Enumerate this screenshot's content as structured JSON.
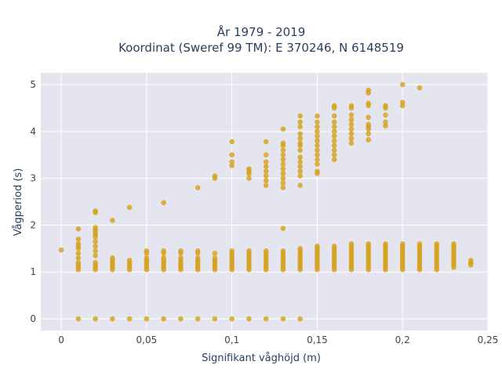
{
  "chart_data": {
    "type": "scatter",
    "title_line1": "År 1979 - 2019",
    "title_line2": "Koordinat (Sweref 99 TM): E 370246, N 6148519",
    "xlabel": "Signifikant våghöjd (m)",
    "ylabel": "Vågperiod (s)",
    "xlim": [
      -0.012,
      0.25
    ],
    "ylim": [
      -0.25,
      5.25
    ],
    "x_ticks": [
      0,
      0.05,
      0.1,
      0.15,
      0.2,
      0.25
    ],
    "x_tick_labels": [
      "0",
      "0,05",
      "0,1",
      "0,15",
      "0,2",
      "0,25"
    ],
    "y_ticks": [
      0,
      1,
      2,
      3,
      4,
      5
    ],
    "y_tick_labels": [
      "0",
      "1",
      "2",
      "3",
      "4",
      "5"
    ],
    "grid": true,
    "marker_color": "#d4a017",
    "plot_bg": "#e5e5ef",
    "points": [
      [
        0,
        1.47
      ],
      [
        0.01,
        0
      ],
      [
        0.02,
        0
      ],
      [
        0.03,
        0
      ],
      [
        0.04,
        0
      ],
      [
        0.05,
        0
      ],
      [
        0.06,
        0
      ],
      [
        0.07,
        0
      ],
      [
        0.08,
        0
      ],
      [
        0.09,
        0
      ],
      [
        0.1,
        0
      ],
      [
        0.11,
        0
      ],
      [
        0.12,
        0
      ],
      [
        0.13,
        0
      ],
      [
        0.14,
        0
      ],
      [
        0.01,
        1.05
      ],
      [
        0.01,
        1.1
      ],
      [
        0.01,
        1.15
      ],
      [
        0.01,
        1.2
      ],
      [
        0.01,
        1.3
      ],
      [
        0.01,
        1.4
      ],
      [
        0.01,
        1.5
      ],
      [
        0.01,
        1.55
      ],
      [
        0.01,
        1.6
      ],
      [
        0.01,
        1.7
      ],
      [
        0.01,
        1.92
      ],
      [
        0.02,
        1.05
      ],
      [
        0.02,
        1.1
      ],
      [
        0.02,
        1.15
      ],
      [
        0.02,
        1.2
      ],
      [
        0.02,
        1.35
      ],
      [
        0.02,
        1.45
      ],
      [
        0.02,
        1.55
      ],
      [
        0.02,
        1.65
      ],
      [
        0.02,
        1.75
      ],
      [
        0.02,
        1.8
      ],
      [
        0.02,
        1.85
      ],
      [
        0.02,
        1.9
      ],
      [
        0.02,
        1.95
      ],
      [
        0.02,
        2.27
      ],
      [
        0.02,
        2.3
      ],
      [
        0.03,
        1.05
      ],
      [
        0.03,
        1.1
      ],
      [
        0.03,
        1.15
      ],
      [
        0.03,
        1.2
      ],
      [
        0.03,
        1.25
      ],
      [
        0.03,
        1.3
      ],
      [
        0.03,
        2.1
      ],
      [
        0.04,
        1.05
      ],
      [
        0.04,
        1.1
      ],
      [
        0.04,
        1.15
      ],
      [
        0.04,
        1.2
      ],
      [
        0.04,
        1.25
      ],
      [
        0.04,
        2.38
      ],
      [
        0.05,
        1.05
      ],
      [
        0.05,
        1.1
      ],
      [
        0.05,
        1.15
      ],
      [
        0.05,
        1.2
      ],
      [
        0.05,
        1.25
      ],
      [
        0.05,
        1.3
      ],
      [
        0.05,
        1.4
      ],
      [
        0.05,
        1.45
      ],
      [
        0.06,
        1.05
      ],
      [
        0.06,
        1.1
      ],
      [
        0.06,
        1.15
      ],
      [
        0.06,
        1.2
      ],
      [
        0.06,
        1.25
      ],
      [
        0.06,
        1.3
      ],
      [
        0.06,
        1.4
      ],
      [
        0.06,
        1.45
      ],
      [
        0.06,
        2.48
      ],
      [
        0.07,
        1.05
      ],
      [
        0.07,
        1.1
      ],
      [
        0.07,
        1.15
      ],
      [
        0.07,
        1.2
      ],
      [
        0.07,
        1.25
      ],
      [
        0.07,
        1.3
      ],
      [
        0.07,
        1.4
      ],
      [
        0.07,
        1.45
      ],
      [
        0.08,
        1.05
      ],
      [
        0.08,
        1.1
      ],
      [
        0.08,
        1.15
      ],
      [
        0.08,
        1.2
      ],
      [
        0.08,
        1.25
      ],
      [
        0.08,
        1.3
      ],
      [
        0.08,
        1.4
      ],
      [
        0.08,
        1.45
      ],
      [
        0.08,
        2.8
      ],
      [
        0.09,
        1.05
      ],
      [
        0.09,
        1.1
      ],
      [
        0.09,
        1.15
      ],
      [
        0.09,
        1.2
      ],
      [
        0.09,
        1.25
      ],
      [
        0.09,
        1.3
      ],
      [
        0.09,
        1.4
      ],
      [
        0.09,
        3.0
      ],
      [
        0.09,
        3.05
      ],
      [
        0.1,
        1.05
      ],
      [
        0.1,
        1.1
      ],
      [
        0.1,
        1.15
      ],
      [
        0.1,
        1.2
      ],
      [
        0.1,
        1.25
      ],
      [
        0.1,
        1.3
      ],
      [
        0.1,
        1.35
      ],
      [
        0.1,
        1.4
      ],
      [
        0.1,
        1.45
      ],
      [
        0.1,
        3.27
      ],
      [
        0.1,
        3.35
      ],
      [
        0.1,
        3.5
      ],
      [
        0.1,
        3.78
      ],
      [
        0.11,
        1.05
      ],
      [
        0.11,
        1.1
      ],
      [
        0.11,
        1.15
      ],
      [
        0.11,
        1.2
      ],
      [
        0.11,
        1.25
      ],
      [
        0.11,
        1.3
      ],
      [
        0.11,
        1.35
      ],
      [
        0.11,
        1.4
      ],
      [
        0.11,
        1.45
      ],
      [
        0.11,
        3.0
      ],
      [
        0.11,
        3.1
      ],
      [
        0.11,
        3.15
      ],
      [
        0.11,
        3.2
      ],
      [
        0.12,
        1.05
      ],
      [
        0.12,
        1.1
      ],
      [
        0.12,
        1.15
      ],
      [
        0.12,
        1.2
      ],
      [
        0.12,
        1.25
      ],
      [
        0.12,
        1.3
      ],
      [
        0.12,
        1.35
      ],
      [
        0.12,
        1.4
      ],
      [
        0.12,
        1.45
      ],
      [
        0.12,
        2.85
      ],
      [
        0.12,
        2.95
      ],
      [
        0.12,
        3.05
      ],
      [
        0.12,
        3.15
      ],
      [
        0.12,
        3.25
      ],
      [
        0.12,
        3.35
      ],
      [
        0.12,
        3.5
      ],
      [
        0.12,
        3.78
      ],
      [
        0.13,
        1.05
      ],
      [
        0.13,
        1.1
      ],
      [
        0.13,
        1.15
      ],
      [
        0.13,
        1.2
      ],
      [
        0.13,
        1.25
      ],
      [
        0.13,
        1.3
      ],
      [
        0.13,
        1.35
      ],
      [
        0.13,
        1.4
      ],
      [
        0.13,
        1.45
      ],
      [
        0.13,
        1.93
      ],
      [
        0.13,
        2.8
      ],
      [
        0.13,
        2.9
      ],
      [
        0.13,
        3.0
      ],
      [
        0.13,
        3.1
      ],
      [
        0.13,
        3.2
      ],
      [
        0.13,
        3.3
      ],
      [
        0.13,
        3.4
      ],
      [
        0.13,
        3.5
      ],
      [
        0.13,
        3.6
      ],
      [
        0.13,
        3.7
      ],
      [
        0.13,
        3.75
      ],
      [
        0.13,
        4.05
      ],
      [
        0.14,
        1.05
      ],
      [
        0.14,
        1.1
      ],
      [
        0.14,
        1.15
      ],
      [
        0.14,
        1.2
      ],
      [
        0.14,
        1.25
      ],
      [
        0.14,
        1.3
      ],
      [
        0.14,
        1.35
      ],
      [
        0.14,
        1.4
      ],
      [
        0.14,
        1.45
      ],
      [
        0.14,
        1.5
      ],
      [
        0.14,
        2.85
      ],
      [
        0.14,
        3.05
      ],
      [
        0.14,
        3.15
      ],
      [
        0.14,
        3.25
      ],
      [
        0.14,
        3.35
      ],
      [
        0.14,
        3.45
      ],
      [
        0.14,
        3.6
      ],
      [
        0.14,
        3.7
      ],
      [
        0.14,
        3.75
      ],
      [
        0.14,
        3.85
      ],
      [
        0.14,
        3.95
      ],
      [
        0.14,
        4.1
      ],
      [
        0.14,
        4.2
      ],
      [
        0.14,
        4.33
      ],
      [
        0.15,
        1.05
      ],
      [
        0.15,
        1.1
      ],
      [
        0.15,
        1.15
      ],
      [
        0.15,
        1.2
      ],
      [
        0.15,
        1.25
      ],
      [
        0.15,
        1.3
      ],
      [
        0.15,
        1.35
      ],
      [
        0.15,
        1.4
      ],
      [
        0.15,
        1.45
      ],
      [
        0.15,
        1.5
      ],
      [
        0.15,
        1.55
      ],
      [
        0.15,
        3.1
      ],
      [
        0.15,
        3.15
      ],
      [
        0.15,
        3.3
      ],
      [
        0.15,
        3.4
      ],
      [
        0.15,
        3.5
      ],
      [
        0.15,
        3.6
      ],
      [
        0.15,
        3.7
      ],
      [
        0.15,
        3.8
      ],
      [
        0.15,
        3.9
      ],
      [
        0.15,
        4.0
      ],
      [
        0.15,
        4.1
      ],
      [
        0.15,
        4.2
      ],
      [
        0.15,
        4.33
      ],
      [
        0.16,
        1.05
      ],
      [
        0.16,
        1.1
      ],
      [
        0.16,
        1.15
      ],
      [
        0.16,
        1.2
      ],
      [
        0.16,
        1.25
      ],
      [
        0.16,
        1.3
      ],
      [
        0.16,
        1.35
      ],
      [
        0.16,
        1.4
      ],
      [
        0.16,
        1.45
      ],
      [
        0.16,
        1.5
      ],
      [
        0.16,
        1.55
      ],
      [
        0.16,
        3.4
      ],
      [
        0.16,
        3.5
      ],
      [
        0.16,
        3.6
      ],
      [
        0.16,
        3.7
      ],
      [
        0.16,
        3.8
      ],
      [
        0.16,
        3.9
      ],
      [
        0.16,
        4.0
      ],
      [
        0.16,
        4.1
      ],
      [
        0.16,
        4.2
      ],
      [
        0.16,
        4.33
      ],
      [
        0.16,
        4.5
      ],
      [
        0.16,
        4.55
      ],
      [
        0.17,
        1.05
      ],
      [
        0.17,
        1.1
      ],
      [
        0.17,
        1.15
      ],
      [
        0.17,
        1.2
      ],
      [
        0.17,
        1.25
      ],
      [
        0.17,
        1.3
      ],
      [
        0.17,
        1.35
      ],
      [
        0.17,
        1.4
      ],
      [
        0.17,
        1.45
      ],
      [
        0.17,
        1.5
      ],
      [
        0.17,
        1.55
      ],
      [
        0.17,
        1.6
      ],
      [
        0.17,
        3.75
      ],
      [
        0.17,
        3.85
      ],
      [
        0.17,
        3.95
      ],
      [
        0.17,
        4.05
      ],
      [
        0.17,
        4.15
      ],
      [
        0.17,
        4.25
      ],
      [
        0.17,
        4.35
      ],
      [
        0.17,
        4.5
      ],
      [
        0.17,
        4.55
      ],
      [
        0.18,
        1.05
      ],
      [
        0.18,
        1.1
      ],
      [
        0.18,
        1.15
      ],
      [
        0.18,
        1.2
      ],
      [
        0.18,
        1.25
      ],
      [
        0.18,
        1.3
      ],
      [
        0.18,
        1.35
      ],
      [
        0.18,
        1.4
      ],
      [
        0.18,
        1.45
      ],
      [
        0.18,
        1.5
      ],
      [
        0.18,
        1.55
      ],
      [
        0.18,
        1.6
      ],
      [
        0.18,
        3.82
      ],
      [
        0.18,
        3.95
      ],
      [
        0.18,
        4.05
      ],
      [
        0.18,
        4.1
      ],
      [
        0.18,
        4.15
      ],
      [
        0.18,
        4.3
      ],
      [
        0.18,
        4.55
      ],
      [
        0.18,
        4.6
      ],
      [
        0.18,
        4.82
      ],
      [
        0.18,
        4.88
      ],
      [
        0.19,
        1.05
      ],
      [
        0.19,
        1.1
      ],
      [
        0.19,
        1.15
      ],
      [
        0.19,
        1.2
      ],
      [
        0.19,
        1.25
      ],
      [
        0.19,
        1.3
      ],
      [
        0.19,
        1.35
      ],
      [
        0.19,
        1.4
      ],
      [
        0.19,
        1.45
      ],
      [
        0.19,
        1.5
      ],
      [
        0.19,
        1.55
      ],
      [
        0.19,
        1.6
      ],
      [
        0.19,
        4.12
      ],
      [
        0.19,
        4.2
      ],
      [
        0.19,
        4.35
      ],
      [
        0.19,
        4.5
      ],
      [
        0.19,
        4.55
      ],
      [
        0.2,
        1.05
      ],
      [
        0.2,
        1.1
      ],
      [
        0.2,
        1.15
      ],
      [
        0.2,
        1.2
      ],
      [
        0.2,
        1.25
      ],
      [
        0.2,
        1.3
      ],
      [
        0.2,
        1.35
      ],
      [
        0.2,
        1.4
      ],
      [
        0.2,
        1.45
      ],
      [
        0.2,
        1.5
      ],
      [
        0.2,
        1.55
      ],
      [
        0.2,
        1.6
      ],
      [
        0.2,
        4.55
      ],
      [
        0.2,
        4.62
      ],
      [
        0.2,
        5.0
      ],
      [
        0.21,
        1.05
      ],
      [
        0.21,
        1.1
      ],
      [
        0.21,
        1.15
      ],
      [
        0.21,
        1.2
      ],
      [
        0.21,
        1.25
      ],
      [
        0.21,
        1.3
      ],
      [
        0.21,
        1.35
      ],
      [
        0.21,
        1.4
      ],
      [
        0.21,
        1.45
      ],
      [
        0.21,
        1.5
      ],
      [
        0.21,
        1.55
      ],
      [
        0.21,
        1.6
      ],
      [
        0.21,
        4.93
      ],
      [
        0.22,
        1.05
      ],
      [
        0.22,
        1.1
      ],
      [
        0.22,
        1.15
      ],
      [
        0.22,
        1.2
      ],
      [
        0.22,
        1.25
      ],
      [
        0.22,
        1.3
      ],
      [
        0.22,
        1.35
      ],
      [
        0.22,
        1.4
      ],
      [
        0.22,
        1.45
      ],
      [
        0.22,
        1.5
      ],
      [
        0.22,
        1.55
      ],
      [
        0.22,
        1.6
      ],
      [
        0.23,
        1.1
      ],
      [
        0.23,
        1.15
      ],
      [
        0.23,
        1.2
      ],
      [
        0.23,
        1.25
      ],
      [
        0.23,
        1.3
      ],
      [
        0.23,
        1.35
      ],
      [
        0.23,
        1.4
      ],
      [
        0.23,
        1.45
      ],
      [
        0.23,
        1.5
      ],
      [
        0.23,
        1.55
      ],
      [
        0.23,
        1.6
      ],
      [
        0.24,
        1.15
      ],
      [
        0.24,
        1.2
      ],
      [
        0.24,
        1.25
      ]
    ]
  }
}
